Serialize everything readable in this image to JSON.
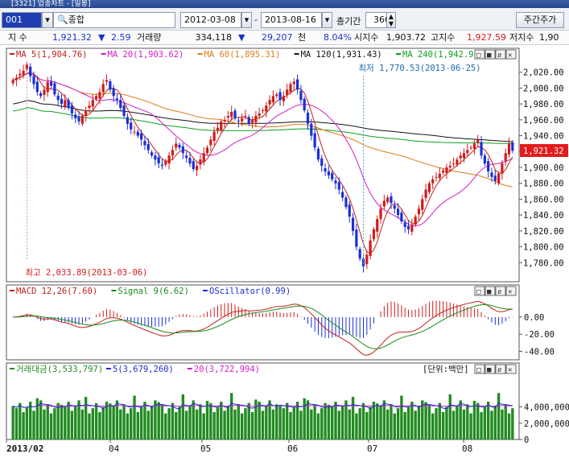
{
  "window": {
    "title": "[3321] 업종차트 - [일봉]"
  },
  "toolbar": {
    "code_value": "001",
    "search_label": "종합",
    "start_date": "2012-03-08",
    "date_sep": "-",
    "end_date": "2013-08-16",
    "period_label": "총기간",
    "period_value": "360",
    "period_button": "주간주가"
  },
  "quote": {
    "index_label": "지 수",
    "index_value": "1,921.32",
    "change_sign": "▼",
    "change_value": "2.59",
    "volume_label": "거래량",
    "volume_value": "334,118",
    "volume_sign": "▼",
    "volume_change": "29,207",
    "volume_unit": "천",
    "volume_pct": "8.04%",
    "open_label": "시지수",
    "open_value": "1,903.72",
    "high_label": "고지수",
    "high_value": "1,927.59",
    "low_label": "저지수",
    "low_value": "1,90"
  },
  "colors": {
    "up": "#d21b1b",
    "down": "#1a2fd8",
    "ma5": "#c0201a",
    "ma20": "#d21ec8",
    "ma60": "#e07a18",
    "ma120": "#111111",
    "ma240": "#0aa020",
    "macd": "#c0201a",
    "signal": "#1a8a1a",
    "osc": "#1a2fd8",
    "volbar": "#228b22"
  },
  "panel_buttons": [
    "□",
    "■",
    "⇵",
    "✕"
  ],
  "chart_data": [
    {
      "type": "candlestick",
      "legend": [
        {
          "label": "MA 5(1,904.76)",
          "color": "#c0201a"
        },
        {
          "label": "MA 20(1,903.62)",
          "color": "#d21ec8"
        },
        {
          "label": "MA 60(1,895.31)",
          "color": "#e07a18"
        },
        {
          "label": "MA 120(1,931.43)",
          "color": "#111111"
        },
        {
          "label": "MA 240(1,942.91)",
          "color": "#0aa020"
        }
      ],
      "y_ticks": [
        "2,020.00",
        "2,000.00",
        "1,980.00",
        "1,960.00",
        "1,940.00",
        "1,920.00",
        "1,900.00",
        "1,880.00",
        "1,860.00",
        "1,840.00",
        "1,820.00",
        "1,800.00",
        "1,780.00"
      ],
      "ylim": [
        1760,
        2040
      ],
      "current_price_label": "1,921.32",
      "annotations": {
        "low": "최저 1,770.53(2013-06-25)",
        "high": "최고 2,033.89(2013-03-06)"
      },
      "closes": [
        2010,
        2013,
        2018,
        2022,
        2030,
        2015,
        2005,
        1995,
        1990,
        1998,
        2008,
        2003,
        1992,
        1985,
        1980,
        1985,
        1975,
        1968,
        1962,
        1958,
        1965,
        1972,
        1978,
        1985,
        1990,
        1995,
        2005,
        2010,
        1998,
        1990,
        1985,
        1975,
        1965,
        1955,
        1948,
        1945,
        1940,
        1935,
        1928,
        1922,
        1915,
        1910,
        1905,
        1902,
        1908,
        1915,
        1922,
        1930,
        1925,
        1918,
        1912,
        1905,
        1898,
        1902,
        1910,
        1918,
        1925,
        1935,
        1945,
        1950,
        1958,
        1960,
        1965,
        1970,
        1962,
        1958,
        1962,
        1965,
        1955,
        1960,
        1965,
        1968,
        1972,
        1978,
        1985,
        1990,
        1992,
        1985,
        1990,
        1998,
        2005,
        2008,
        1998,
        1985,
        1972,
        1955,
        1940,
        1925,
        1910,
        1902,
        1895,
        1890,
        1885,
        1880,
        1872,
        1862,
        1850,
        1838,
        1820,
        1800,
        1785,
        1775,
        1790,
        1808,
        1822,
        1835,
        1848,
        1858,
        1862,
        1855,
        1848,
        1840,
        1832,
        1825,
        1822,
        1828,
        1838,
        1848,
        1860,
        1872,
        1880,
        1885,
        1888,
        1892,
        1896,
        1900,
        1902,
        1905,
        1910,
        1915,
        1918,
        1922,
        1925,
        1930,
        1935,
        1915,
        1905,
        1895,
        1888,
        1883,
        1892,
        1905,
        1918,
        1930,
        1921
      ]
    },
    {
      "type": "line",
      "legend": [
        {
          "label": "MACD 12,26(7.60)",
          "color": "#c0201a"
        },
        {
          "label": "Signal 9(6.62)",
          "color": "#1a8a1a"
        },
        {
          "label": "OScillator(0.99)",
          "color": "#1a2fd8"
        }
      ],
      "y_ticks": [
        "0.00",
        "-20.00",
        "-40.00"
      ],
      "ylim": [
        -48,
        30
      ]
    },
    {
      "type": "bar",
      "legend": [
        {
          "label": "거래대금(3,533,797)",
          "color": "#228b22"
        },
        {
          "label": "5(3,679,260)",
          "color": "#1a2fd8"
        },
        {
          "label": "20(3,722,994)",
          "color": "#d21ec8"
        }
      ],
      "unit_label": "[단위:백만]",
      "y_ticks": [
        "4,000,000",
        "2,000,000",
        "0"
      ],
      "ylim": [
        0,
        8000000
      ],
      "x_labels": [
        "2013/02",
        "04",
        "05",
        "06",
        "07",
        "08"
      ]
    }
  ]
}
